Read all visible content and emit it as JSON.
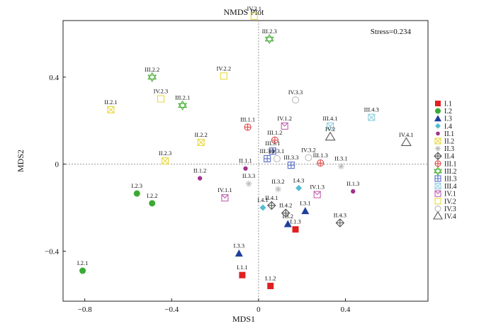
{
  "chart_data": {
    "type": "scatter",
    "title": "NMDS Plot",
    "xlabel": "MDS1",
    "ylabel": "MDS2",
    "annotation": "Stress=0.234",
    "xlim": [
      -0.9,
      0.78
    ],
    "ylim": [
      -0.63,
      0.66
    ],
    "xticks": [
      -0.8,
      -0.4,
      0,
      0.4
    ],
    "xtick_labels": [
      "−0.8",
      "−0.4",
      "0",
      "0.4"
    ],
    "yticks": [
      -0.4,
      0,
      0.4
    ],
    "ytick_labels": [
      "−0.4",
      "0",
      "0.4"
    ],
    "grid": false,
    "reference_lines": [
      0,
      0
    ],
    "legend_position": "right",
    "groups": [
      {
        "name": "I.1",
        "marker": "square-filled",
        "color": "#e02020"
      },
      {
        "name": "I.2",
        "marker": "circle-filled",
        "color": "#3aaa35"
      },
      {
        "name": "I.3",
        "marker": "triangle-filled",
        "color": "#1f3f9a"
      },
      {
        "name": "I.4",
        "marker": "diamond-filled",
        "color": "#56bcd0"
      },
      {
        "name": "II.1",
        "marker": "circle-small",
        "color": "#a0328e"
      },
      {
        "name": "II.2",
        "marker": "box-x",
        "color": "#e8d840"
      },
      {
        "name": "II.3",
        "marker": "star",
        "color": "#bbbbbb"
      },
      {
        "name": "II.4",
        "marker": "diamond-plus",
        "color": "#555555"
      },
      {
        "name": "III.1",
        "marker": "circle-plus",
        "color": "#e04848"
      },
      {
        "name": "III.2",
        "marker": "hexagram",
        "color": "#4caf3a"
      },
      {
        "name": "III.3",
        "marker": "box-plus",
        "color": "#5a6fc8"
      },
      {
        "name": "III.4",
        "marker": "box-x",
        "color": "#8fd0e0"
      },
      {
        "name": "IV.1",
        "marker": "box-bowtie",
        "color": "#c060b0"
      },
      {
        "name": "IV.2",
        "marker": "square-open",
        "color": "#e8d840"
      },
      {
        "name": "IV.3",
        "marker": "circle-open",
        "color": "#bbbbbb"
      },
      {
        "name": "IV.4",
        "marker": "triangle-open",
        "color": "#555555"
      }
    ],
    "points": [
      {
        "label": "I.1.1",
        "group": "I.1",
        "x": -0.075,
        "y": -0.51
      },
      {
        "label": "I.1.2",
        "group": "I.1",
        "x": 0.055,
        "y": -0.56
      },
      {
        "label": "I.1.3",
        "group": "I.1",
        "x": 0.17,
        "y": -0.3
      },
      {
        "label": "I.2.1",
        "group": "I.2",
        "x": -0.81,
        "y": -0.49
      },
      {
        "label": "I.2.2",
        "group": "I.2",
        "x": -0.49,
        "y": -0.18
      },
      {
        "label": "I.2.3",
        "group": "I.2",
        "x": -0.56,
        "y": -0.135
      },
      {
        "label": "I.3.1",
        "group": "I.3",
        "x": 0.215,
        "y": -0.215
      },
      {
        "label": "I.3.2",
        "group": "I.3",
        "x": 0.135,
        "y": -0.275
      },
      {
        "label": "I.3.3",
        "group": "I.3",
        "x": -0.09,
        "y": -0.41
      },
      {
        "label": "I.4.1",
        "group": "I.4",
        "x": 0.02,
        "y": -0.2
      },
      {
        "label": "I.4.3",
        "group": "I.4",
        "x": 0.185,
        "y": -0.11
      },
      {
        "label": "II.1.1",
        "group": "II.1",
        "x": -0.06,
        "y": -0.02
      },
      {
        "label": "II.1.2",
        "group": "II.1",
        "x": -0.27,
        "y": -0.065
      },
      {
        "label": "II.1.3",
        "group": "II.1",
        "x": 0.435,
        "y": -0.125
      },
      {
        "label": "II.2.1",
        "group": "II.2",
        "x": -0.68,
        "y": 0.25
      },
      {
        "label": "II.2.2",
        "group": "II.2",
        "x": -0.265,
        "y": 0.1
      },
      {
        "label": "II.2.3",
        "group": "II.2",
        "x": -0.43,
        "y": 0.015
      },
      {
        "label": "II.3.1",
        "group": "II.3",
        "x": 0.38,
        "y": -0.01
      },
      {
        "label": "II.3.3",
        "group": "II.3",
        "x": -0.045,
        "y": -0.09
      },
      {
        "label": "II.3.2",
        "group": "II.3",
        "x": 0.09,
        "y": -0.115
      },
      {
        "label": "II.4.1",
        "group": "II.4",
        "x": 0.06,
        "y": -0.19
      },
      {
        "label": "II.4.2",
        "group": "II.4",
        "x": 0.125,
        "y": -0.225
      },
      {
        "label": "II.4.3",
        "group": "II.4",
        "x": 0.375,
        "y": -0.27
      },
      {
        "label": "III.1.1",
        "group": "III.1",
        "x": -0.05,
        "y": 0.17
      },
      {
        "label": "III.1.2",
        "group": "III.1",
        "x": 0.075,
        "y": 0.11
      },
      {
        "label": "III.1.3",
        "group": "III.1",
        "x": 0.285,
        "y": 0.005
      },
      {
        "label": "III.2.2",
        "group": "III.2",
        "x": -0.49,
        "y": 0.4
      },
      {
        "label": "III.2.3",
        "group": "III.2",
        "x": 0.05,
        "y": 0.575
      },
      {
        "label": "III.2.1",
        "group": "III.2",
        "x": -0.35,
        "y": 0.27
      },
      {
        "label": "III.3.1",
        "group": "III.3",
        "x": 0.065,
        "y": 0.06
      },
      {
        "label": "III.3.2",
        "group": "III.3",
        "x": 0.04,
        "y": 0.025
      },
      {
        "label": "III.3.3",
        "group": "III.3",
        "x": 0.15,
        "y": -0.005
      },
      {
        "label": "III.4.1",
        "group": "III.4",
        "x": 0.33,
        "y": 0.175
      },
      {
        "label": "III.4.3",
        "group": "III.4",
        "x": 0.52,
        "y": 0.215
      },
      {
        "label": "IV.1.1",
        "group": "IV.1",
        "x": -0.155,
        "y": -0.155
      },
      {
        "label": "IV.1.2",
        "group": "IV.1",
        "x": 0.12,
        "y": 0.175
      },
      {
        "label": "IV.1.3",
        "group": "IV.1",
        "x": 0.27,
        "y": -0.14
      },
      {
        "label": "IV.2.1",
        "group": "IV.2",
        "x": -0.02,
        "y": 0.68
      },
      {
        "label": "IV.2.2",
        "group": "IV.2",
        "x": -0.16,
        "y": 0.405
      },
      {
        "label": "IV.2.3",
        "group": "IV.2",
        "x": -0.45,
        "y": 0.3
      },
      {
        "label": "IV.3.1",
        "group": "IV.3",
        "x": 0.085,
        "y": 0.025
      },
      {
        "label": "IV.3.2",
        "group": "IV.3",
        "x": 0.23,
        "y": 0.03
      },
      {
        "label": "IV.3.3",
        "group": "IV.3",
        "x": 0.17,
        "y": 0.295
      },
      {
        "label": "IV.2",
        "group": "IV.4",
        "x": 0.33,
        "y": 0.125
      },
      {
        "label": "IV.4.1",
        "group": "IV.4",
        "x": 0.68,
        "y": 0.1
      }
    ]
  }
}
